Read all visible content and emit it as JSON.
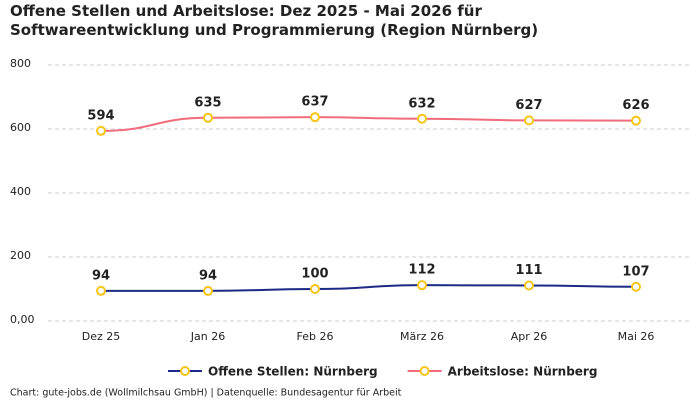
{
  "chart_data": {
    "type": "line",
    "title": "Offene Stellen und Arbeitslose: Dez 2025 - Mai 2026 für Softwareentwicklung und Programmierung (Region Nürnberg)",
    "categories": [
      "Dez 25",
      "Jan 26",
      "Feb 26",
      "März 26",
      "Apr 26",
      "Mai 26"
    ],
    "series": [
      {
        "name": "Offene Stellen: Nürnberg",
        "color": "#1c2a85",
        "values": [
          94,
          94,
          100,
          112,
          111,
          107
        ]
      },
      {
        "name": "Arbeitslose: Nürnberg",
        "color": "#f06b7c",
        "values": [
          594,
          635,
          637,
          632,
          627,
          626
        ]
      }
    ],
    "marker_color": "#f5c518",
    "ylim": [
      0,
      800
    ],
    "yticks": [
      {
        "value": 0,
        "label": "0,00"
      },
      200,
      400,
      600,
      800
    ],
    "grid": true,
    "source": "Chart: gute-jobs.de (Wollmilchsau GmbH) | Datenquelle: Bundesagentur für Arbeit"
  }
}
